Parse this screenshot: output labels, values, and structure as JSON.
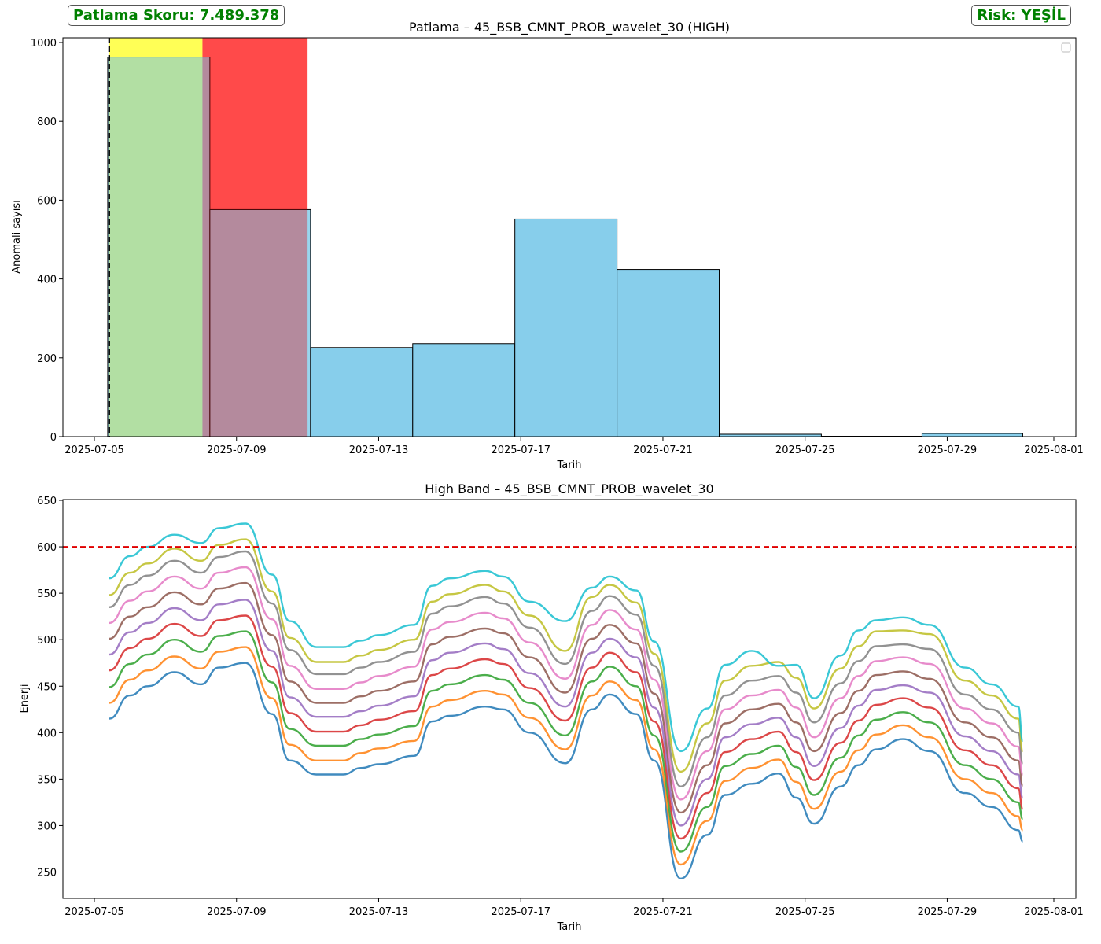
{
  "header": {
    "score_label": "Patlama Skoru: 7.489.378",
    "risk_label": "Risk: YEŞİL",
    "accent_color": "#008000"
  },
  "chart_data": [
    {
      "type": "bar",
      "title": "Patlama – 45_BSB_CMNT_PROB_wavelet_30 (HIGH)",
      "xlabel": "Tarih",
      "ylabel": "Anomali sayısı",
      "x_ticks": [
        "2025-07-05",
        "2025-07-09",
        "2025-07-13",
        "2025-07-17",
        "2025-07-21",
        "2025-07-25",
        "2025-07-29",
        "2025-08-01"
      ],
      "y_ticks": [
        0,
        200,
        400,
        600,
        800,
        1000
      ],
      "xlim": [
        "2025-07-04",
        "2025-08-01"
      ],
      "ylim": [
        0,
        1010
      ],
      "bin_edges": [
        "2025-07-05T09:00",
        "2025-07-08T06:00",
        "2025-07-11T02:00",
        "2025-07-13T23:00",
        "2025-07-16T20:00",
        "2025-07-19T17:00",
        "2025-07-22T14:00",
        "2025-07-25T11:00",
        "2025-07-28T07:00",
        "2025-07-31T03:00"
      ],
      "values": [
        963,
        576,
        226,
        236,
        552,
        424,
        6,
        1,
        8
      ],
      "bar_color": "#87CEEB",
      "bar_edge_color": "#000000",
      "highlights": [
        {
          "start": "2025-07-05T10:00",
          "end": "2025-07-08T01:00",
          "color": "#FFFF00",
          "opacity": 0.55
        },
        {
          "start": "2025-07-08T01:00",
          "end": "2025-07-11T00:00",
          "color": "#FF0000",
          "opacity": 0.6
        }
      ],
      "vline": {
        "x": "2025-07-05T10:00",
        "color": "#000000",
        "style": "dashed"
      },
      "legend": {
        "placement": "upper right",
        "entries": []
      },
      "grid": false
    },
    {
      "type": "line",
      "title": "High Band – 45_BSB_CMNT_PROB_wavelet_30",
      "xlabel": "Tarih",
      "ylabel": "Enerji",
      "x_ticks": [
        "2025-07-05",
        "2025-07-09",
        "2025-07-13",
        "2025-07-17",
        "2025-07-21",
        "2025-07-25",
        "2025-07-29",
        "2025-08-01"
      ],
      "y_ticks": [
        250,
        300,
        350,
        400,
        450,
        500,
        550,
        600,
        650
      ],
      "xlim": [
        "2025-07-04",
        "2025-08-01"
      ],
      "ylim": [
        222,
        650
      ],
      "threshold": {
        "y": 600,
        "color": "#E00000",
        "style": "dashed"
      },
      "grid": false,
      "x": [
        "2025-07-05T10:00",
        "2025-07-06T00:00",
        "2025-07-06T12:00",
        "2025-07-07T06:00",
        "2025-07-08T00:00",
        "2025-07-08T12:00",
        "2025-07-09T06:00",
        "2025-07-10T00:00",
        "2025-07-10T12:00",
        "2025-07-11T06:00",
        "2025-07-12T00:00",
        "2025-07-12T12:00",
        "2025-07-13T00:00",
        "2025-07-14T00:00",
        "2025-07-14T12:00",
        "2025-07-15T00:00",
        "2025-07-16T00:00",
        "2025-07-16T12:00",
        "2025-07-17T06:00",
        "2025-07-18T06:00",
        "2025-07-19T00:00",
        "2025-07-19T12:00",
        "2025-07-20T06:00",
        "2025-07-20T18:00",
        "2025-07-21T12:00",
        "2025-07-22T06:00",
        "2025-07-22T18:00",
        "2025-07-23T12:00",
        "2025-07-24T06:00",
        "2025-07-24T18:00",
        "2025-07-25T06:00",
        "2025-07-26T00:00",
        "2025-07-26T12:00",
        "2025-07-27T00:00",
        "2025-07-27T18:00",
        "2025-07-28T12:00",
        "2025-07-29T12:00",
        "2025-07-30T06:00",
        "2025-07-31T00:00",
        "2025-07-31T03:00"
      ],
      "series": [
        {
          "color": "#1f77b4",
          "values": [
            415,
            440,
            450,
            465,
            452,
            470,
            475,
            420,
            370,
            355,
            355,
            362,
            366,
            375,
            412,
            418,
            428,
            425,
            400,
            367,
            425,
            441,
            420,
            370,
            243,
            290,
            333,
            345,
            356,
            330,
            302,
            342,
            365,
            382,
            393,
            380,
            335,
            320,
            295,
            283
          ]
        },
        {
          "color": "#ff7f0e",
          "values": [
            432,
            457,
            467,
            482,
            469,
            487,
            492,
            437,
            387,
            370,
            370,
            378,
            383,
            391,
            428,
            435,
            445,
            441,
            416,
            382,
            440,
            455,
            435,
            382,
            258,
            305,
            348,
            362,
            371,
            347,
            318,
            358,
            381,
            398,
            408,
            395,
            350,
            335,
            310,
            295
          ]
        },
        {
          "color": "#2ca02c",
          "values": [
            449,
            474,
            484,
            500,
            487,
            504,
            509,
            454,
            404,
            386,
            386,
            393,
            398,
            407,
            445,
            452,
            462,
            457,
            432,
            397,
            455,
            471,
            450,
            397,
            272,
            320,
            364,
            377,
            386,
            363,
            333,
            373,
            397,
            414,
            422,
            411,
            365,
            350,
            325,
            307
          ]
        },
        {
          "color": "#d62728",
          "values": [
            467,
            491,
            501,
            517,
            504,
            521,
            526,
            471,
            421,
            401,
            401,
            408,
            414,
            423,
            462,
            469,
            479,
            474,
            448,
            413,
            470,
            486,
            465,
            412,
            286,
            335,
            379,
            393,
            401,
            379,
            349,
            389,
            413,
            430,
            437,
            427,
            381,
            365,
            340,
            318
          ]
        },
        {
          "color": "#9467bd",
          "values": [
            484,
            508,
            518,
            534,
            521,
            538,
            543,
            488,
            438,
            417,
            417,
            423,
            429,
            439,
            478,
            486,
            496,
            490,
            464,
            428,
            486,
            501,
            481,
            427,
            300,
            350,
            395,
            409,
            416,
            395,
            364,
            405,
            429,
            446,
            451,
            443,
            396,
            380,
            355,
            330
          ]
        },
        {
          "color": "#8c564b",
          "values": [
            501,
            525,
            535,
            551,
            538,
            555,
            561,
            505,
            455,
            432,
            432,
            439,
            445,
            455,
            495,
            503,
            512,
            507,
            481,
            443,
            501,
            516,
            496,
            442,
            314,
            365,
            410,
            425,
            431,
            411,
            380,
            421,
            445,
            462,
            466,
            458,
            411,
            395,
            370,
            343
          ]
        },
        {
          "color": "#e377c2",
          "values": [
            518,
            542,
            552,
            568,
            555,
            572,
            578,
            522,
            472,
            447,
            447,
            454,
            461,
            471,
            511,
            519,
            529,
            523,
            497,
            458,
            516,
            532,
            511,
            457,
            328,
            380,
            425,
            440,
            446,
            427,
            395,
            437,
            461,
            477,
            481,
            474,
            426,
            410,
            385,
            355
          ]
        },
        {
          "color": "#7f7f7f",
          "values": [
            535,
            559,
            569,
            585,
            572,
            589,
            595,
            539,
            489,
            463,
            463,
            470,
            476,
            487,
            528,
            536,
            546,
            539,
            513,
            474,
            531,
            547,
            527,
            472,
            342,
            395,
            440,
            456,
            461,
            443,
            411,
            453,
            477,
            493,
            495,
            490,
            441,
            425,
            400,
            367
          ]
        },
        {
          "color": "#bcbd22",
          "values": [
            548,
            572,
            582,
            598,
            585,
            602,
            608,
            552,
            502,
            476,
            476,
            483,
            489,
            500,
            541,
            549,
            559,
            552,
            526,
            488,
            546,
            559,
            540,
            485,
            358,
            410,
            456,
            472,
            476,
            459,
            426,
            469,
            493,
            509,
            510,
            506,
            456,
            440,
            415,
            380
          ]
        },
        {
          "color": "#17becf",
          "values": [
            566,
            590,
            600,
            613,
            604,
            620,
            625,
            570,
            520,
            492,
            492,
            499,
            505,
            516,
            558,
            566,
            574,
            568,
            541,
            520,
            556,
            568,
            553,
            498,
            380,
            426,
            473,
            488,
            472,
            473,
            437,
            483,
            510,
            521,
            524,
            516,
            470,
            452,
            428,
            391
          ]
        }
      ]
    }
  ]
}
